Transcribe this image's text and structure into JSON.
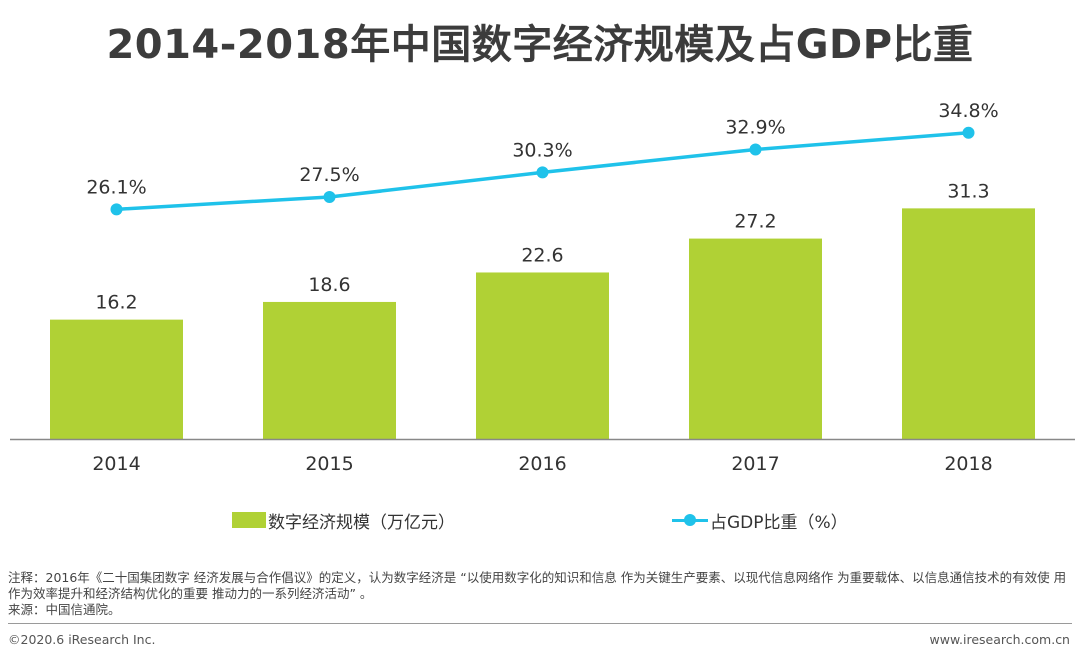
{
  "title": "2014-2018年中国数字经济规模及占GDP比重",
  "chart_data": {
    "type": "bar",
    "title": "2014-2018年中国数字经济规模及占GDP比重",
    "categories": [
      "2014",
      "2015",
      "2016",
      "2017",
      "2018"
    ],
    "series": [
      {
        "name": "数字经济规模（万亿元）",
        "type": "bar",
        "values": [
          16.2,
          18.6,
          22.6,
          27.2,
          31.3
        ],
        "labels": [
          "16.2",
          "18.6",
          "22.6",
          "27.2",
          "31.3"
        ],
        "color": "#b0d135"
      },
      {
        "name": "占GDP比重（%）",
        "type": "line",
        "values": [
          26.1,
          27.5,
          30.3,
          32.9,
          34.8
        ],
        "labels": [
          "26.1%",
          "27.5%",
          "30.3%",
          "32.9%",
          "34.8%"
        ],
        "color": "#1fc2ea"
      }
    ],
    "bar_axis_range": [
      0,
      38
    ],
    "line_axis_range": [
      0,
      50
    ],
    "grid": false,
    "legend_position": "bottom"
  },
  "note": {
    "text": "注释：2016年《二十国集团数字 经济发展与合作倡议》的定义，认为数字经济是 “以使用数字化的知识和信息 作为关键生产要素、以现代信息网络作 为重要载体、以信息通信技术的有效使 用作为效率提升和经济结构优化的重要 推动力的一系列经济活动” 。",
    "source": "来源：中国信通院。"
  },
  "footer": {
    "copyright": "©2020.6 iResearch Inc.",
    "website": "www.iresearch.com.cn"
  }
}
